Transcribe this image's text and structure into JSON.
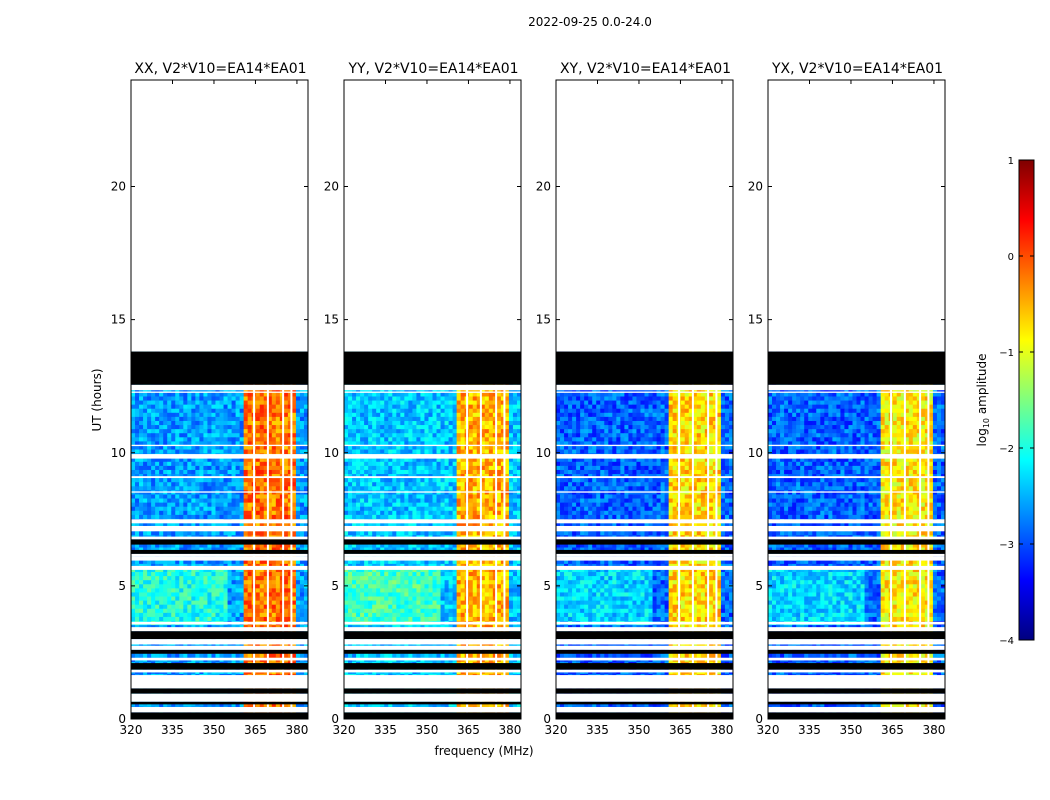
{
  "figure": {
    "suptitle": "2022-09-25 0.0-24.0",
    "ylabel": "UT (hours)",
    "xlabel": "frequency (MHz)"
  },
  "chart_data": {
    "type": "heatmap",
    "title": "2022-09-25 0.0-24.0",
    "xlabel": "frequency (MHz)",
    "ylabel": "UT (hours)",
    "xlim": [
      320,
      384
    ],
    "ylim": [
      0,
      24
    ],
    "xticks": [
      320,
      335,
      350,
      365,
      380
    ],
    "yticks": [
      0,
      5,
      10,
      15,
      20
    ],
    "panels": [
      {
        "title": "XX, V2*V10=EA14*EA01",
        "base_level": -2.6,
        "rfi_level": -0.2
      },
      {
        "title": "YY, V2*V10=EA14*EA01",
        "base_level": -2.4,
        "rfi_level": -0.5
      },
      {
        "title": "XY, V2*V10=EA14*EA01",
        "base_level": -2.9,
        "rfi_level": -0.7
      },
      {
        "title": "YX, V2*V10=EA14*EA01",
        "base_level": -2.9,
        "rfi_level": -0.8
      }
    ],
    "rfi_band_mhz": [
      361,
      380
    ],
    "rfi_gap_lines_mhz": [
      364.5,
      369.5,
      375,
      378
    ],
    "blank_after_hour": 13.8,
    "black_bands_hours": [
      [
        12.55,
        13.8
      ],
      [
        6.55,
        6.75
      ],
      [
        6.2,
        6.35
      ],
      [
        3.0,
        3.3
      ],
      [
        2.45,
        2.6
      ],
      [
        1.85,
        2.1
      ],
      [
        0.95,
        1.15
      ],
      [
        0.55,
        0.65
      ],
      [
        0.0,
        0.25
      ]
    ],
    "white_gaps_hours": [
      [
        12.35,
        12.55
      ],
      [
        12.25,
        12.3
      ],
      [
        10.25,
        10.3
      ],
      [
        9.78,
        9.95
      ],
      [
        9.05,
        9.12
      ],
      [
        8.5,
        8.55
      ],
      [
        7.35,
        7.5
      ],
      [
        7.05,
        7.25
      ],
      [
        6.75,
        6.85
      ],
      [
        6.1,
        6.2
      ],
      [
        5.95,
        6.1
      ],
      [
        5.6,
        5.75
      ],
      [
        3.55,
        3.65
      ],
      [
        3.3,
        3.45
      ],
      [
        2.8,
        3.0
      ],
      [
        2.6,
        2.75
      ],
      [
        2.2,
        2.3
      ],
      [
        1.75,
        1.85
      ],
      [
        1.15,
        1.65
      ],
      [
        0.65,
        0.95
      ],
      [
        0.25,
        0.45
      ]
    ],
    "colorbar": {
      "label": "log10 amplitude",
      "min": -4,
      "max": 1,
      "ticks": [
        1,
        0,
        -1,
        -2,
        -3,
        -4
      ],
      "colormap": "jet",
      "colors": [
        "#00007f",
        "#0000ff",
        "#007fff",
        "#00ffff",
        "#7fff7f",
        "#ffff00",
        "#ff7f00",
        "#ff0000",
        "#7f0000"
      ]
    }
  }
}
